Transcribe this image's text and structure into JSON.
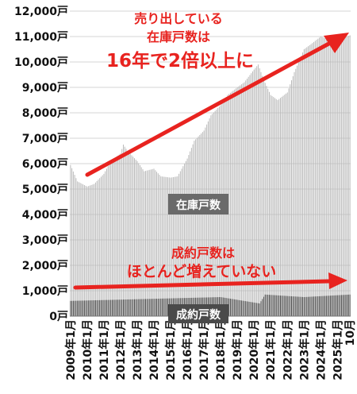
{
  "chart_data": {
    "type": "bar",
    "ylim": [
      0,
      12000
    ],
    "yticks": [
      {
        "value": 0,
        "label": "0戸"
      },
      {
        "value": 1000,
        "label": "1,000戸"
      },
      {
        "value": 2000,
        "label": "2,000戸"
      },
      {
        "value": 3000,
        "label": "3,000戸"
      },
      {
        "value": 4000,
        "label": "4,000戸"
      },
      {
        "value": 5000,
        "label": "5,000戸"
      },
      {
        "value": 6000,
        "label": "6,000戸"
      },
      {
        "value": 7000,
        "label": "7,000戸"
      },
      {
        "value": 8000,
        "label": "8,000戸"
      },
      {
        "value": 9000,
        "label": "9,000戸"
      },
      {
        "value": 10000,
        "label": "10,000戸"
      },
      {
        "value": 11000,
        "label": "11,000戸"
      },
      {
        "value": 12000,
        "label": "12,000戸"
      }
    ],
    "xticks": [
      {
        "index": 0,
        "label": "2009年1月"
      },
      {
        "index": 12,
        "label": "2010年1月"
      },
      {
        "index": 24,
        "label": "2011年1月"
      },
      {
        "index": 36,
        "label": "2012年1月"
      },
      {
        "index": 48,
        "label": "2013年1月"
      },
      {
        "index": 60,
        "label": "2014年1月"
      },
      {
        "index": 72,
        "label": "2015年1月"
      },
      {
        "index": 84,
        "label": "2016年1月"
      },
      {
        "index": 96,
        "label": "2017年1月"
      },
      {
        "index": 108,
        "label": "2018年1月"
      },
      {
        "index": 120,
        "label": "2019年1月"
      },
      {
        "index": 132,
        "label": "2020年1月"
      },
      {
        "index": 144,
        "label": "2021年1月"
      },
      {
        "index": 156,
        "label": "2022年1月"
      },
      {
        "index": 168,
        "label": "2023年1月"
      },
      {
        "index": 180,
        "label": "2024年1月"
      },
      {
        "index": 192,
        "label": "2025年1月"
      },
      {
        "index": 201,
        "label": "10月"
      }
    ],
    "start": "2009-01",
    "end": "2025-10",
    "grid": true,
    "series": [
      {
        "name": "在庫戸数",
        "color": "#b8b8b8",
        "anchors": [
          [
            "2009-01",
            5950
          ],
          [
            "2009-06",
            5300
          ],
          [
            "2010-01",
            5100
          ],
          [
            "2010-06",
            5200
          ],
          [
            "2011-01",
            5600
          ],
          [
            "2011-06",
            6100
          ],
          [
            "2012-01",
            6400
          ],
          [
            "2012-03",
            6750
          ],
          [
            "2012-06",
            6500
          ],
          [
            "2013-01",
            6100
          ],
          [
            "2013-06",
            5700
          ],
          [
            "2014-01",
            5800
          ],
          [
            "2014-06",
            5500
          ],
          [
            "2015-01",
            5450
          ],
          [
            "2015-06",
            5500
          ],
          [
            "2016-01",
            6200
          ],
          [
            "2016-06",
            6900
          ],
          [
            "2017-01",
            7300
          ],
          [
            "2017-06",
            7900
          ],
          [
            "2018-01",
            8300
          ],
          [
            "2018-06",
            8700
          ],
          [
            "2019-01",
            9000
          ],
          [
            "2019-06",
            9200
          ],
          [
            "2020-01",
            9700
          ],
          [
            "2020-04",
            9900
          ],
          [
            "2020-08",
            9300
          ],
          [
            "2021-01",
            8700
          ],
          [
            "2021-06",
            8500
          ],
          [
            "2022-01",
            8800
          ],
          [
            "2022-06",
            9600
          ],
          [
            "2023-01",
            10500
          ],
          [
            "2023-06",
            10700
          ],
          [
            "2024-01",
            11000
          ],
          [
            "2024-06",
            10900
          ],
          [
            "2025-01",
            10850
          ],
          [
            "2025-10",
            11050
          ]
        ]
      },
      {
        "name": "成約戸数",
        "color": "#444444",
        "anchors": [
          [
            "2009-01",
            600
          ],
          [
            "2012-01",
            650
          ],
          [
            "2015-01",
            700
          ],
          [
            "2018-01",
            750
          ],
          [
            "2020-05",
            500
          ],
          [
            "2020-09",
            850
          ],
          [
            "2023-01",
            750
          ],
          [
            "2025-10",
            850
          ]
        ]
      }
    ],
    "labels": {
      "inventory": "在庫戸数",
      "contracts": "成約戸数"
    },
    "annotations": {
      "top_line1": "売り出している",
      "top_line2": "在庫戸数は",
      "top_line3": "16年で2倍以上に",
      "mid_line1": "成約戸数は",
      "mid_line2": "ほとんど増えていない"
    },
    "annotation_color": "#e8231f"
  }
}
